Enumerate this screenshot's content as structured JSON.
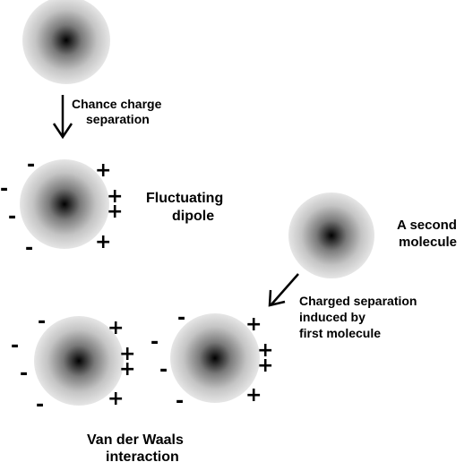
{
  "labels": {
    "chance_line1": "Chance charge",
    "chance_line2": "separation",
    "fluct_line1": "Fluctuating",
    "fluct_line2": "dipole",
    "second_line1": "A second",
    "second_line2": "molecule",
    "induced_line1": "Charged separation",
    "induced_line2": "induced by",
    "induced_line3": "first molecule",
    "vdw_line1": "Van der Waals",
    "vdw_line2": "interaction"
  },
  "signs": {
    "minus": "-",
    "plus": "+"
  },
  "colors": {
    "molecule_core": "#000000",
    "molecule_edge": "#e6e6e6",
    "text": "#000000",
    "background": "#ffffff"
  }
}
